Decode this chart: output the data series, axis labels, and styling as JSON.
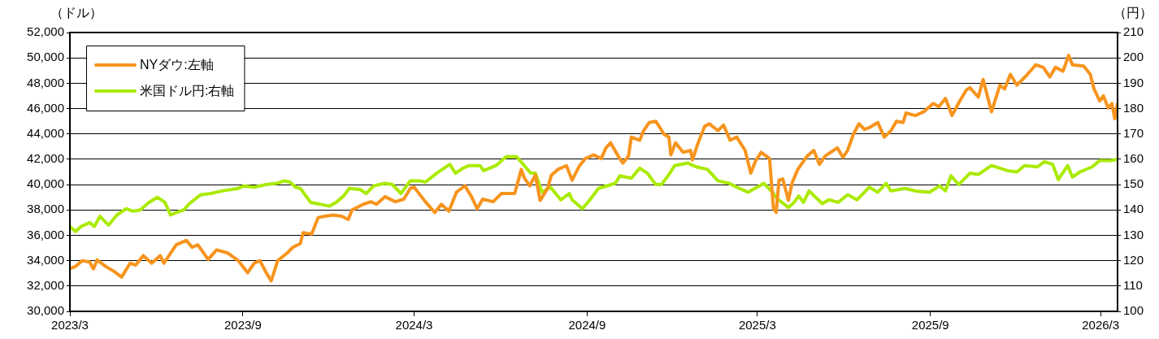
{
  "chart_data": {
    "type": "line",
    "ylabel": "（ドル）",
    "y2label": "（円）",
    "xlim": [
      "2023-03-01",
      "2026-03-19"
    ],
    "xticks": [
      {
        "value": "2023-03-01",
        "label": "2023/3"
      },
      {
        "value": "2023-09-01",
        "label": "2023/9"
      },
      {
        "value": "2024-03-01",
        "label": "2024/3"
      },
      {
        "value": "2024-09-01",
        "label": "2024/9"
      },
      {
        "value": "2025-03-01",
        "label": "2025/3"
      },
      {
        "value": "2025-09-01",
        "label": "2025/9"
      },
      {
        "value": "2026-03-01",
        "label": "2026/3"
      }
    ],
    "ylim": [
      30000,
      52000
    ],
    "yticks": [
      {
        "value": 30000,
        "label": "30,000"
      },
      {
        "value": 32000,
        "label": "32,000"
      },
      {
        "value": 34000,
        "label": "34,000"
      },
      {
        "value": 36000,
        "label": "36,000"
      },
      {
        "value": 38000,
        "label": "38,000"
      },
      {
        "value": 40000,
        "label": "40,000"
      },
      {
        "value": 42000,
        "label": "42,000"
      },
      {
        "value": 44000,
        "label": "44,000"
      },
      {
        "value": 46000,
        "label": "46,000"
      },
      {
        "value": 48000,
        "label": "48,000"
      },
      {
        "value": 50000,
        "label": "50,000"
      },
      {
        "value": 52000,
        "label": "52,000"
      }
    ],
    "y2lim": [
      100,
      210
    ],
    "y2ticks": [
      100,
      110,
      120,
      130,
      140,
      150,
      160,
      170,
      180,
      190,
      200,
      210
    ],
    "grid": "y",
    "legend": "top left",
    "series": [
      {
        "name": "NYダウ:左軸",
        "color": "#f7941d",
        "x": [
          "2023-03-01",
          "2023-03-07",
          "2023-03-14",
          "2023-03-22",
          "2023-03-26",
          "2023-03-30",
          "2023-04-08",
          "2023-04-17",
          "2023-04-25",
          "2023-05-04",
          "2023-05-10",
          "2023-05-18",
          "2023-05-27",
          "2023-06-05",
          "2023-06-09",
          "2023-06-22",
          "2023-07-03",
          "2023-07-09",
          "2023-07-15",
          "2023-07-26",
          "2023-08-04",
          "2023-08-16",
          "2023-08-27",
          "2023-09-06",
          "2023-09-13",
          "2023-09-19",
          "2023-09-25",
          "2023-10-01",
          "2023-10-08",
          "2023-10-18",
          "2023-10-24",
          "2023-11-01",
          "2023-11-04",
          "2023-11-13",
          "2023-11-20",
          "2023-11-27",
          "2023-12-06",
          "2023-12-15",
          "2023-12-22",
          "2023-12-26",
          "2024-01-07",
          "2024-01-15",
          "2024-01-21",
          "2024-01-30",
          "2024-02-10",
          "2024-02-19",
          "2024-02-26",
          "2024-03-01",
          "2024-03-13",
          "2024-03-23",
          "2024-03-30",
          "2024-04-07",
          "2024-04-15",
          "2024-04-24",
          "2024-05-01",
          "2024-05-07",
          "2024-05-13",
          "2024-05-24",
          "2024-06-02",
          "2024-06-16",
          "2024-06-23",
          "2024-06-26",
          "2024-07-02",
          "2024-07-08",
          "2024-07-13",
          "2024-07-21",
          "2024-07-25",
          "2024-08-01",
          "2024-08-10",
          "2024-08-16",
          "2024-08-24",
          "2024-08-30",
          "2024-09-08",
          "2024-09-16",
          "2024-09-21",
          "2024-09-26",
          "2024-10-04",
          "2024-10-09",
          "2024-10-15",
          "2024-10-18",
          "2024-10-27",
          "2024-10-31",
          "2024-11-06",
          "2024-11-13",
          "2024-11-22",
          "2024-11-27",
          "2024-11-29",
          "2024-12-04",
          "2024-12-12",
          "2024-12-20",
          "2024-12-22",
          "2024-12-28",
          "2025-01-04",
          "2025-01-09",
          "2025-01-18",
          "2025-01-24",
          "2025-01-31",
          "2025-02-07",
          "2025-02-16",
          "2025-02-22",
          "2025-02-27",
          "2025-03-05",
          "2025-03-14",
          "2025-03-18",
          "2025-03-21",
          "2025-03-24",
          "2025-03-28",
          "2025-04-03",
          "2025-04-07",
          "2025-04-13",
          "2025-04-23",
          "2025-04-30",
          "2025-05-06",
          "2025-05-12",
          "2025-05-25",
          "2025-05-31",
          "2025-06-05",
          "2025-06-11",
          "2025-06-17",
          "2025-06-23",
          "2025-06-28",
          "2025-07-07",
          "2025-07-14",
          "2025-07-21",
          "2025-07-27",
          "2025-08-03",
          "2025-08-06",
          "2025-08-16",
          "2025-08-25",
          "2025-09-04",
          "2025-09-10",
          "2025-09-17",
          "2025-09-24",
          "2025-09-30",
          "2025-10-09",
          "2025-10-13",
          "2025-10-22",
          "2025-10-27",
          "2025-11-05",
          "2025-11-14",
          "2025-11-19",
          "2025-11-25",
          "2025-12-02",
          "2025-12-12",
          "2025-12-22",
          "2025-12-30",
          "2026-01-06",
          "2026-01-12",
          "2026-01-20",
          "2026-01-26",
          "2026-01-30",
          "2026-02-11",
          "2026-02-18",
          "2026-02-22",
          "2026-02-28",
          "2026-03-04",
          "2026-03-09",
          "2026-03-13",
          "2026-03-16",
          "2026-03-19"
        ],
        "values": [
          33350,
          33550,
          34000,
          33900,
          33350,
          34050,
          33550,
          33150,
          32700,
          33800,
          33650,
          34400,
          33800,
          34400,
          33800,
          35250,
          35600,
          35050,
          35250,
          34100,
          34850,
          34600,
          34000,
          33050,
          33800,
          34000,
          33150,
          32400,
          34000,
          34600,
          35050,
          35350,
          36200,
          36100,
          37400,
          37500,
          37600,
          37500,
          37250,
          38000,
          38450,
          38650,
          38450,
          39050,
          38650,
          38850,
          39700,
          39800,
          38650,
          37800,
          38450,
          37900,
          39400,
          39900,
          39050,
          38100,
          38850,
          38650,
          39300,
          39300,
          41200,
          40550,
          39900,
          40750,
          38750,
          39700,
          40750,
          41200,
          41500,
          40350,
          41500,
          42050,
          42350,
          42050,
          42900,
          43300,
          42250,
          41700,
          42250,
          43750,
          43500,
          44250,
          44900,
          45000,
          43950,
          43750,
          42350,
          43300,
          42550,
          42700,
          41950,
          43300,
          44600,
          44800,
          44250,
          44700,
          43500,
          43750,
          42700,
          40900,
          41850,
          42550,
          42050,
          38200,
          37800,
          40350,
          40450,
          38750,
          40150,
          41200,
          42250,
          42700,
          41600,
          42250,
          42900,
          42150,
          42700,
          43950,
          44800,
          44350,
          44500,
          44900,
          43750,
          44250,
          45000,
          44900,
          45650,
          45450,
          45750,
          46400,
          46150,
          46800,
          45450,
          46300,
          47450,
          47650,
          46900,
          48300,
          45750,
          47850,
          47550,
          48700,
          47850,
          48600,
          49450,
          49250,
          48500,
          49250,
          48950,
          50200,
          49450,
          49350,
          48700,
          47550,
          46600,
          47000,
          46050,
          46400,
          45200,
          46400
        ]
      },
      {
        "name": "米国ドル円:右軸",
        "color": "#aaea00",
        "axis": "y2",
        "x": [
          "2023-03-01",
          "2023-03-07",
          "2023-03-13",
          "2023-03-22",
          "2023-03-27",
          "2023-04-02",
          "2023-04-11",
          "2023-04-20",
          "2023-04-30",
          "2023-05-07",
          "2023-05-15",
          "2023-05-24",
          "2023-06-02",
          "2023-06-10",
          "2023-06-16",
          "2023-06-22",
          "2023-06-30",
          "2023-07-06",
          "2023-07-18",
          "2023-07-29",
          "2023-08-10",
          "2023-08-27",
          "2023-09-02",
          "2023-09-13",
          "2023-09-25",
          "2023-10-07",
          "2023-10-15",
          "2023-10-21",
          "2023-10-27",
          "2023-11-01",
          "2023-11-12",
          "2023-11-19",
          "2023-12-02",
          "2023-12-09",
          "2023-12-17",
          "2023-12-23",
          "2024-01-04",
          "2024-01-10",
          "2024-01-18",
          "2024-01-30",
          "2024-02-07",
          "2024-02-16",
          "2024-02-26",
          "2024-03-07",
          "2024-03-13",
          "2024-03-25",
          "2024-04-08",
          "2024-04-14",
          "2024-04-22",
          "2024-04-28",
          "2024-05-10",
          "2024-05-14",
          "2024-05-27",
          "2024-06-07",
          "2024-06-18",
          "2024-06-25",
          "2024-07-03",
          "2024-07-08",
          "2024-07-15",
          "2024-07-24",
          "2024-08-04",
          "2024-08-13",
          "2024-08-16",
          "2024-08-27",
          "2024-09-05",
          "2024-09-13",
          "2024-10-01",
          "2024-10-06",
          "2024-10-18",
          "2024-10-27",
          "2024-11-04",
          "2024-11-13",
          "2024-11-19",
          "2024-11-27",
          "2024-12-03",
          "2024-12-17",
          "2024-12-26",
          "2025-01-07",
          "2025-01-18",
          "2025-01-30",
          "2025-02-07",
          "2025-02-19",
          "2025-03-03",
          "2025-03-08",
          "2025-03-17",
          "2025-03-22",
          "2025-04-03",
          "2025-04-09",
          "2025-04-14",
          "2025-04-19",
          "2025-04-25",
          "2025-05-09",
          "2025-05-16",
          "2025-05-26",
          "2025-06-05",
          "2025-06-15",
          "2025-06-28",
          "2025-07-07",
          "2025-07-16",
          "2025-07-21",
          "2025-08-05",
          "2025-08-16",
          "2025-08-31",
          "2025-09-11",
          "2025-09-17",
          "2025-09-23",
          "2025-10-01",
          "2025-10-13",
          "2025-10-22",
          "2025-11-05",
          "2025-11-22",
          "2025-12-02",
          "2025-12-10",
          "2025-12-24",
          "2025-12-31",
          "2026-01-09",
          "2026-01-15",
          "2026-01-25",
          "2026-01-30",
          "2026-02-07",
          "2026-02-20",
          "2026-02-28",
          "2026-03-12",
          "2026-03-19"
        ],
        "values": [
          133.5,
          131.5,
          133.5,
          135,
          133.5,
          137.5,
          134,
          138,
          140.5,
          139.5,
          140,
          143,
          145,
          143,
          138,
          139,
          140,
          142.5,
          146,
          146.5,
          147.5,
          148.5,
          149.5,
          149,
          150,
          150.5,
          151.5,
          151,
          149,
          148.5,
          143,
          142.5,
          141.5,
          143,
          145.5,
          148.5,
          148,
          146.5,
          149.5,
          150.5,
          150,
          146.5,
          151.5,
          151.5,
          151,
          154.5,
          158,
          154.5,
          156.5,
          157.5,
          157.5,
          155.5,
          157.5,
          161,
          161,
          158,
          154.5,
          154.5,
          147,
          149,
          144,
          146.5,
          144,
          140.5,
          144.5,
          148.5,
          150.5,
          153.5,
          152.5,
          156.5,
          154.5,
          150,
          150,
          154,
          157.5,
          158.5,
          157,
          156,
          151.5,
          150.5,
          149,
          147,
          149.5,
          150.5,
          147,
          144.5,
          141,
          143,
          145.5,
          143,
          147.5,
          142.5,
          144,
          143,
          146,
          144,
          149,
          147,
          150.5,
          147.5,
          148.5,
          147.5,
          147,
          149.5,
          147.5,
          153.5,
          150,
          154.5,
          154,
          157.5,
          155.5,
          155,
          157.5,
          157,
          159,
          158,
          152,
          157.5,
          153,
          155,
          157,
          159.5,
          159.5,
          160
        ]
      }
    ]
  }
}
